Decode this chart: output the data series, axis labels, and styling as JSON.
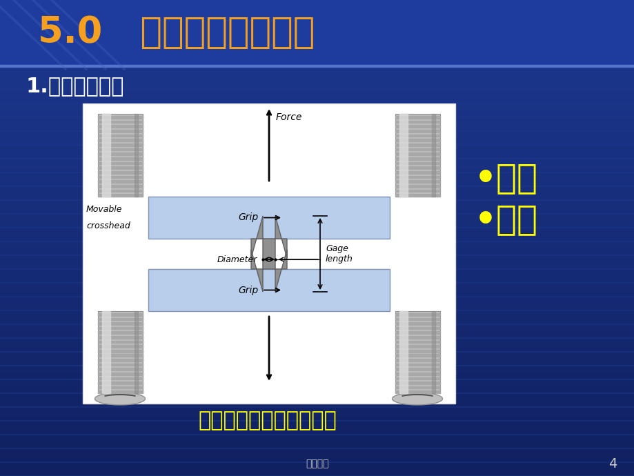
{
  "bg_color_top": "#1a2f8a",
  "bg_color_bot": "#0f2060",
  "header_color": "#1e3a9e",
  "header_line_color": "#5575cc",
  "diag_line_color": "#4060b0",
  "title_text": "5.0   材料力学性能测试",
  "title_color": "#f5a020",
  "subtitle_text": "1.拉伸实验装置",
  "subtitle_color": "#ffffff",
  "bullet1_text": "•位移",
  "bullet2_text": "•载荷",
  "bullet_color": "#ffff00",
  "caption_text": "材料试验机示意图－拉伸",
  "caption_color": "#ffff00",
  "footer_text": "高级教学",
  "page_text": "4",
  "misc_color": "#cccccc",
  "grip_color": "#b8ceea",
  "screw_body": "#c0c0c0",
  "screw_thread": "#a0a0a0",
  "screw_highlight": "#e0e0e0",
  "specimen_color": "#909090",
  "white": "#ffffff",
  "diagram_border": "#dddddd",
  "arrow_color": "#000000"
}
